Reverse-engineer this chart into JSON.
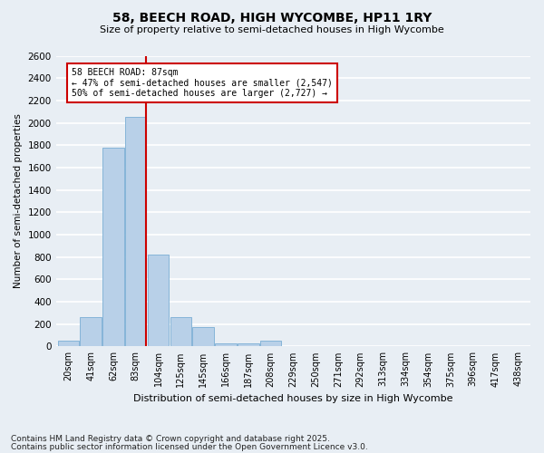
{
  "title1": "58, BEECH ROAD, HIGH WYCOMBE, HP11 1RY",
  "title2": "Size of property relative to semi-detached houses in High Wycombe",
  "xlabel": "Distribution of semi-detached houses by size in High Wycombe",
  "ylabel": "Number of semi-detached properties",
  "categories": [
    "20sqm",
    "41sqm",
    "62sqm",
    "83sqm",
    "104sqm",
    "125sqm",
    "145sqm",
    "166sqm",
    "187sqm",
    "208sqm",
    "229sqm",
    "250sqm",
    "271sqm",
    "292sqm",
    "313sqm",
    "334sqm",
    "354sqm",
    "375sqm",
    "396sqm",
    "417sqm",
    "438sqm"
  ],
  "values": [
    50,
    260,
    1780,
    2050,
    820,
    260,
    170,
    30,
    30,
    50,
    0,
    0,
    0,
    0,
    0,
    0,
    0,
    0,
    0,
    0,
    0
  ],
  "bar_color": "#b8d0e8",
  "bar_edge_color": "#7aadd4",
  "marker_label": "58 BEECH ROAD: 87sqm",
  "annotation_line1": "← 47% of semi-detached houses are smaller (2,547)",
  "annotation_line2": "50% of semi-detached houses are larger (2,727) →",
  "annotation_box_color": "#ffffff",
  "annotation_box_edge": "#cc0000",
  "vline_color": "#cc0000",
  "vline_x": 3.47,
  "ylim": [
    0,
    2600
  ],
  "yticks": [
    0,
    200,
    400,
    600,
    800,
    1000,
    1200,
    1400,
    1600,
    1800,
    2000,
    2200,
    2400,
    2600
  ],
  "background_color": "#e8eef4",
  "grid_color": "#ffffff",
  "footer1": "Contains HM Land Registry data © Crown copyright and database right 2025.",
  "footer2": "Contains public sector information licensed under the Open Government Licence v3.0."
}
